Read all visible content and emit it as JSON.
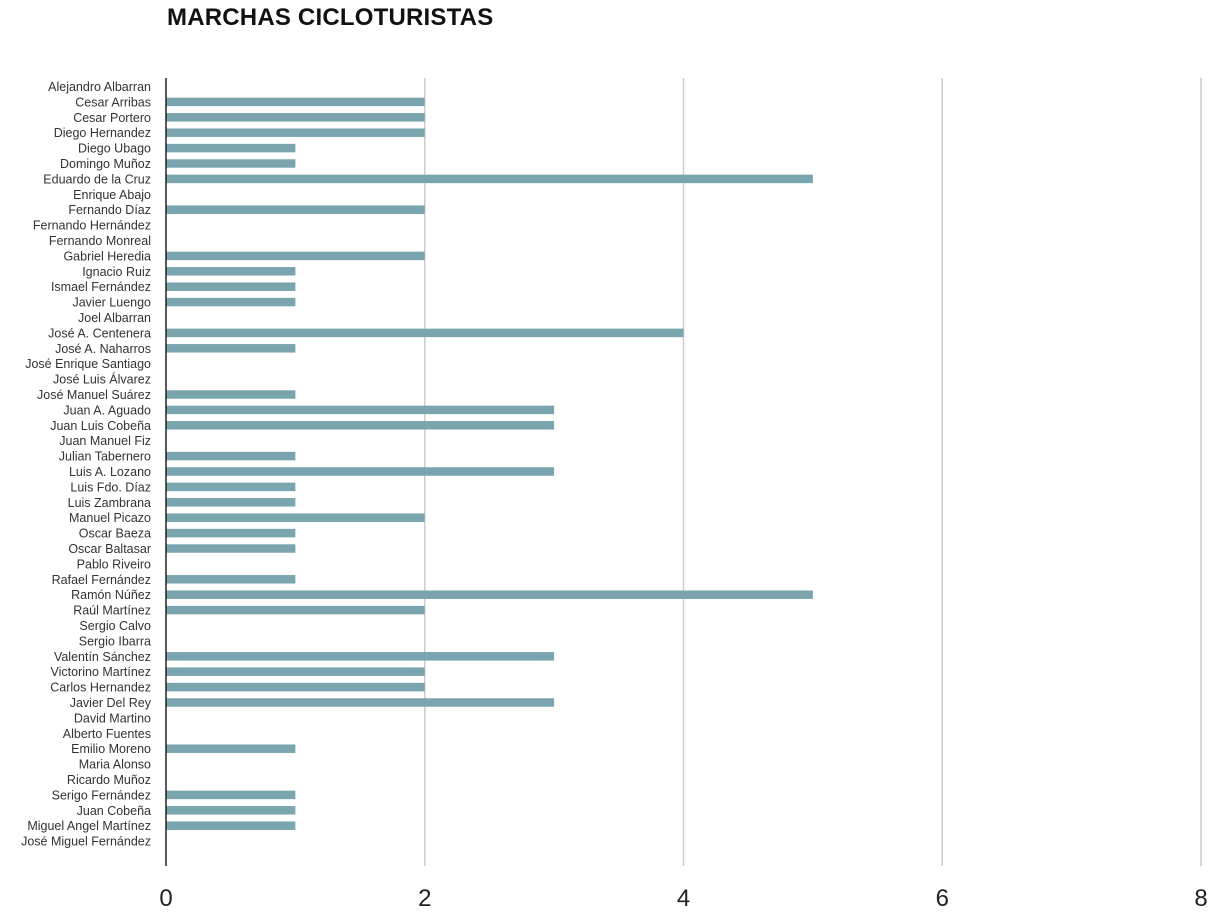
{
  "chart_data": {
    "type": "bar",
    "orientation": "horizontal",
    "title": "MARCHAS CICLOTURISTAS",
    "xlabel": "",
    "ylabel": "",
    "xlim": [
      0,
      8
    ],
    "xticks": [
      "0",
      "2",
      "4",
      "6",
      "8"
    ],
    "grid": true,
    "bar_color": "#7aa5ae",
    "categories": [
      "Alejandro Albarran",
      "Cesar Arribas",
      "Cesar Portero",
      "Diego Hernandez",
      "Diego Ubago",
      "Domingo Muñoz",
      "Eduardo de la Cruz",
      "Enrique Abajo",
      "Fernando Díaz",
      "Fernando Hernández",
      "Fernando Monreal",
      "Gabriel Heredia",
      "Ignacio Ruiz",
      "Ismael Fernández",
      "Javier Luengo",
      "Joel Albarran",
      "José A. Centenera",
      "José A. Naharros",
      "José Enrique Santiago",
      "José Luis Álvarez",
      "José Manuel Suárez",
      "Juan A. Aguado",
      "Juan Luis Cobeña",
      "Juan Manuel Fiz",
      "Julian Tabernero",
      "Luis A. Lozano",
      "Luis Fdo. Díaz",
      "Luis Zambrana",
      "Manuel Picazo",
      "Oscar Baeza",
      "Oscar Baltasar",
      "Pablo Riveiro",
      "Rafael Fernández",
      "Ramón Núñez",
      "Raúl Martínez",
      "Sergio Calvo",
      "Sergio Ibarra",
      "Valentín Sánchez",
      "Victorino Martínez",
      "Carlos Hernandez",
      "Javier Del Rey",
      "David Martino",
      "Alberto Fuentes",
      "Emilio Moreno",
      "Maria Alonso",
      "Ricardo Muñoz",
      "Serigo Fernández",
      "Juan Cobeña",
      "Miguel Angel Martínez",
      "José Miguel Fernández"
    ],
    "values": [
      0,
      2,
      2,
      2,
      1,
      1,
      5,
      0,
      2,
      0,
      0,
      2,
      1,
      1,
      1,
      0,
      4,
      1,
      0,
      0,
      1,
      3,
      3,
      0,
      1,
      3,
      1,
      1,
      2,
      1,
      1,
      0,
      1,
      5,
      2,
      0,
      0,
      3,
      2,
      2,
      3,
      0,
      0,
      1,
      0,
      0,
      1,
      1,
      1,
      0
    ]
  }
}
